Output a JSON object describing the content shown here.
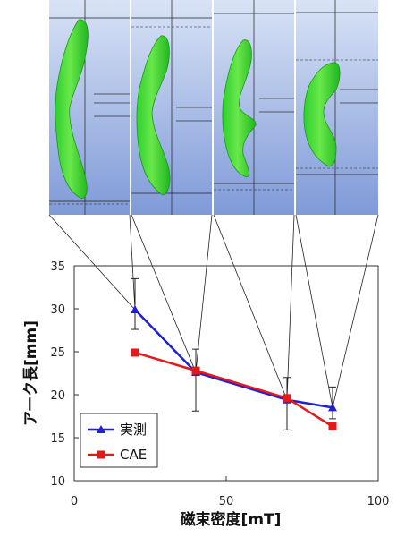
{
  "chart_data": {
    "type": "line",
    "xlabel": "磁束密度[mT]",
    "ylabel": "アーク長[mm]",
    "xlim": [
      0,
      100
    ],
    "ylim": [
      10,
      35
    ],
    "xticks": [
      0,
      50,
      100
    ],
    "yticks": [
      10,
      15,
      20,
      25,
      30,
      35
    ],
    "grid": false,
    "legend": "bottom-left",
    "series": [
      {
        "name": "実測",
        "color": "#1f1fd6",
        "marker": "triangle",
        "x": [
          20,
          40,
          70,
          85
        ],
        "values": [
          29.9,
          22.6,
          19.4,
          18.5
        ],
        "error": [
          [
            27.6,
            33.5
          ],
          [
            18.1,
            25.3
          ],
          [
            15.9,
            22.0
          ],
          [
            17.2,
            20.9
          ]
        ]
      },
      {
        "name": "CAE",
        "color": "#e41a1a",
        "marker": "square",
        "x": [
          20,
          40,
          70,
          85
        ],
        "values": [
          24.9,
          22.8,
          19.6,
          16.3
        ]
      }
    ]
  },
  "images": {
    "description_icon": "arc-simulation-images",
    "count": 4
  }
}
